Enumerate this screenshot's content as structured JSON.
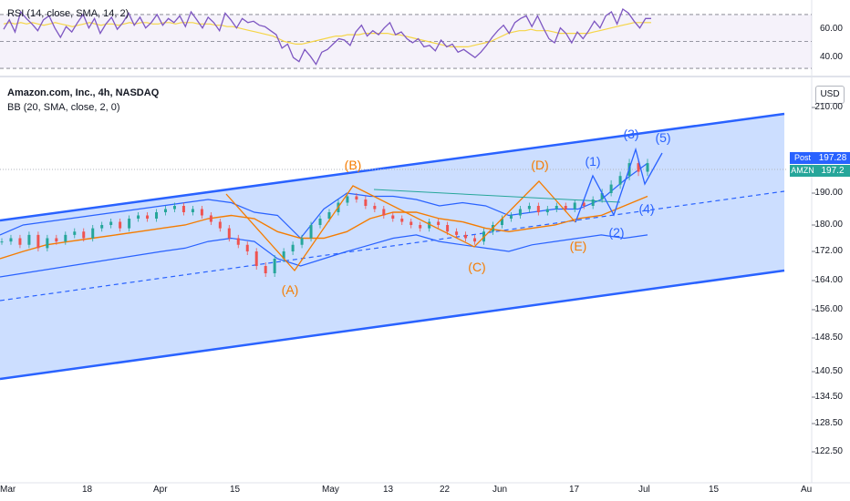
{
  "chart_data": [
    {
      "type": "line",
      "title": "RSI (14, close, SMA, 14, 2)",
      "y_ticks": [
        "60.00",
        "40.00"
      ],
      "series": [],
      "rsi_values": [
        59,
        66,
        57,
        72,
        67,
        63,
        58,
        66,
        69,
        60,
        53,
        61,
        57,
        64,
        70,
        60,
        67,
        56,
        63,
        68,
        59,
        64,
        71,
        62,
        68,
        60,
        64,
        70,
        62,
        67,
        64,
        69,
        61,
        72,
        66,
        60,
        68,
        64,
        58,
        71,
        66,
        60,
        67,
        64,
        65,
        62,
        61,
        58,
        55,
        45,
        48,
        38,
        35,
        44,
        39,
        33,
        42,
        44,
        48,
        52,
        51,
        47,
        57,
        62,
        54,
        58,
        55,
        60,
        64,
        55,
        57,
        52,
        49,
        52,
        46,
        47,
        43,
        51,
        46,
        48,
        42,
        44,
        41,
        38,
        42,
        47,
        53,
        58,
        62,
        56,
        64,
        67,
        69,
        61,
        69,
        60,
        52,
        49,
        60,
        56,
        49,
        57,
        52,
        58,
        65,
        60,
        69,
        72,
        63,
        74,
        71,
        65,
        60,
        67,
        67
      ],
      "rsi_sma": [
        63,
        64,
        63,
        64,
        63,
        64,
        63,
        62,
        63,
        64,
        63,
        62,
        61,
        62,
        63,
        64,
        63,
        62,
        63,
        63,
        62,
        63,
        64,
        63,
        64,
        64,
        63,
        63,
        64,
        64,
        63,
        64,
        64,
        64,
        63,
        63,
        63,
        62,
        62,
        61,
        61,
        60,
        59,
        58,
        57,
        56,
        55,
        54,
        52,
        50,
        49,
        48,
        48,
        49,
        50,
        51,
        52,
        53,
        54,
        54,
        55,
        55,
        55,
        56,
        56,
        56,
        56,
        56,
        55,
        55,
        54,
        53,
        52,
        51,
        50,
        49,
        48,
        47,
        46,
        46,
        46,
        46,
        47,
        48,
        49,
        50,
        52,
        54,
        56,
        57,
        58,
        58,
        59,
        58,
        58,
        58,
        57,
        56,
        56,
        56,
        56,
        56,
        56,
        57,
        58,
        59,
        60,
        61,
        62,
        63,
        64,
        64,
        64,
        64
      ]
    },
    {
      "type": "line",
      "title": "Amazon.com, Inc., 4h, NASDAQ",
      "subtitle": "BB (20, SMA, close, 2, 0)",
      "currency": "USD",
      "x_tick_labels": [
        "Mar",
        "18",
        "Apr",
        "15",
        "May",
        "13",
        "22",
        "Jun",
        "17",
        "Jul",
        "15",
        "Au"
      ],
      "y_tick_labels": [
        "210.00",
        "190.00",
        "180.00",
        "172.00",
        "164.00",
        "156.00",
        "148.50",
        "140.50",
        "134.50",
        "128.50",
        "122.50"
      ],
      "y_ticks": [
        210,
        190,
        180,
        172,
        164,
        156,
        148.5,
        140.5,
        134.5,
        128.5,
        122.5
      ],
      "last_price": 197.2,
      "post_price": 197.28,
      "post_label": "Post",
      "symbol_label": "AMZN",
      "price_colors": {
        "post": "#2962ff",
        "symbol": "#26a69a"
      },
      "wave_labels_orange": [
        "(A)",
        "(B)",
        "(C)",
        "(D)",
        "(E)"
      ],
      "wave_labels_blue": [
        "(1)",
        "(2)",
        "(3)",
        "(4)",
        "(5)"
      ],
      "colors": {
        "channel": "#2962ff",
        "fill": "#bbd3ff",
        "bb_mid": "#f57c00",
        "wave_orange": "#f57c00",
        "wave_blue": "#2962ff",
        "rsi": "#7e57c2",
        "rsi_sma": "#f5d547",
        "candle_up": "#26a69a",
        "candle_down": "#ef5350"
      }
    }
  ]
}
